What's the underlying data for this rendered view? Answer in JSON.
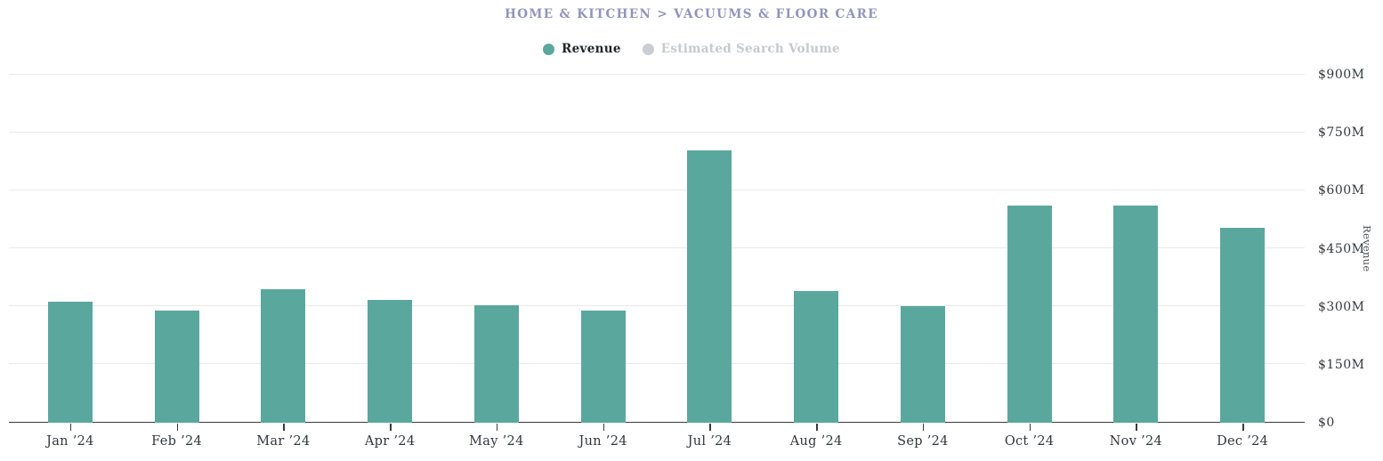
{
  "header": {
    "breadcrumb": "HOME & KITCHEN > VACUUMS & FLOOR CARE"
  },
  "legend": {
    "items": [
      {
        "label": "Revenue",
        "dot_color": "#5aa79e",
        "text_color": "#21262b",
        "active": true
      },
      {
        "label": "Estimated Search Volume",
        "dot_color": "#c9ced3",
        "text_color": "#c5cacf",
        "active": false
      }
    ]
  },
  "chart_data": {
    "type": "bar",
    "title": "HOME & KITCHEN > VACUUMS & FLOOR CARE",
    "categories": [
      "Jan ’24",
      "Feb ’24",
      "Mar ’24",
      "Apr ’24",
      "May ’24",
      "Jun ’24",
      "Jul ’24",
      "Aug ’24",
      "Sep ’24",
      "Oct ’24",
      "Nov ’24",
      "Dec ’24"
    ],
    "series": [
      {
        "name": "Revenue",
        "color": "#5aa79e",
        "unit": "millions USD",
        "values": [
          314,
          289,
          346,
          317,
          305,
          291,
          704,
          341,
          302,
          561,
          562,
          503
        ]
      }
    ],
    "xlabel": "",
    "ylabel": "Revenue",
    "ylim_millions": [
      0,
      900
    ],
    "y_ticks": [
      {
        "label": "$0",
        "value": 0
      },
      {
        "label": "$150M",
        "value": 150
      },
      {
        "label": "$300M",
        "value": 300
      },
      {
        "label": "$450M",
        "value": 450
      },
      {
        "label": "$600M",
        "value": 600
      },
      {
        "label": "$750M",
        "value": 750
      },
      {
        "label": "$900M",
        "value": 900
      }
    ],
    "grid": "horizontal",
    "legend_position": "top-center",
    "y_axis_side": "right"
  },
  "colors": {
    "bar": "#5aa79e",
    "title_text": "#9095ba",
    "gridline": "#e9e9e9",
    "axis_line": "#3b3b3b",
    "axis_label_text": "#33383d",
    "inactive_legend": "#c5cacf",
    "background": "#ffffff"
  }
}
